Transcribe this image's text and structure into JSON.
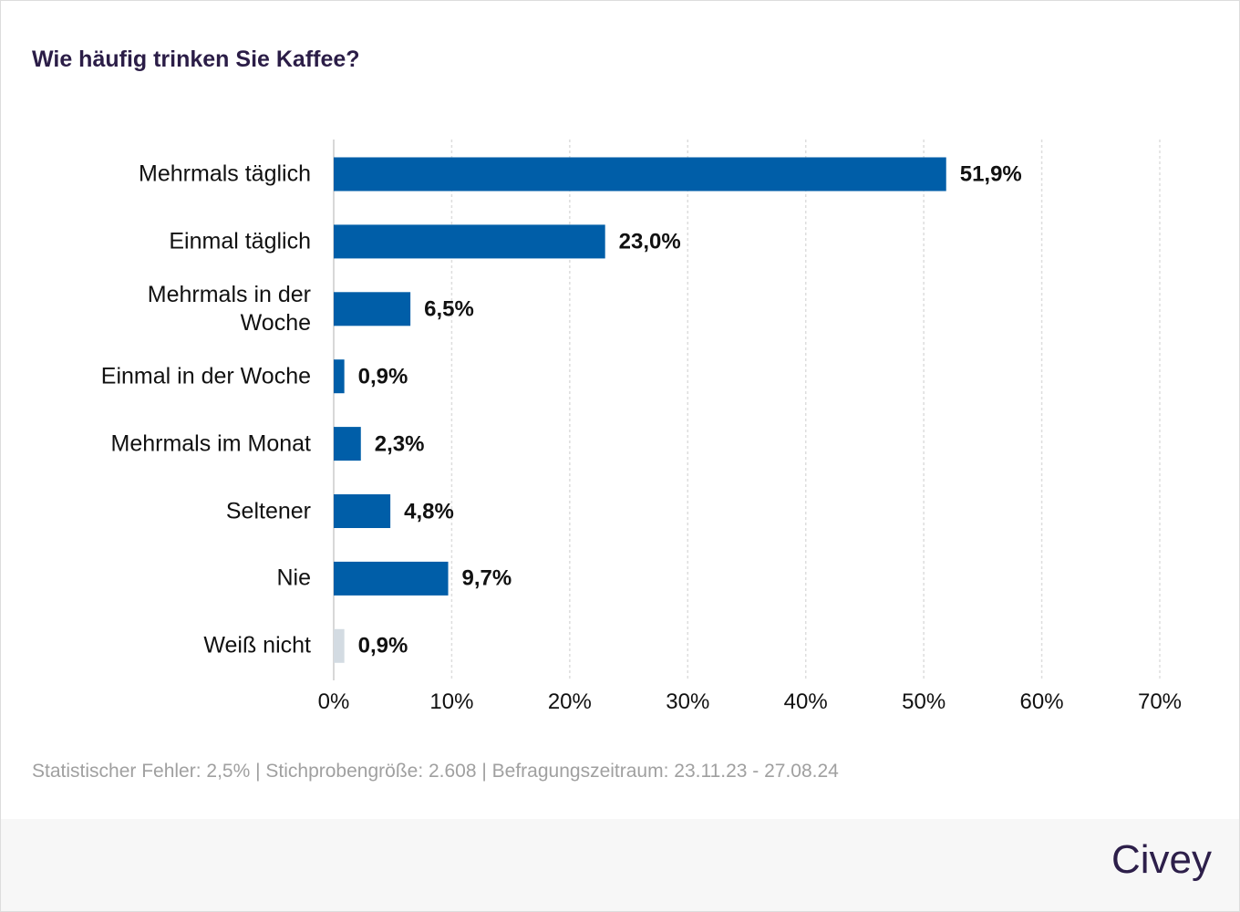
{
  "chart_data": {
    "type": "barh",
    "title": "Wie häufig trinken Sie Kaffee?",
    "categories": [
      "Mehrmals täglich",
      "Einmal täglich",
      "Mehrmals in der Woche",
      "Einmal in der Woche",
      "Mehrmals im Monat",
      "Seltener",
      "Nie",
      "Weiß nicht"
    ],
    "values": [
      51.9,
      23.0,
      6.5,
      0.9,
      2.3,
      4.8,
      9.7,
      0.9
    ],
    "value_labels": [
      "51,9%",
      "23,0%",
      "6,5%",
      "0,9%",
      "2,3%",
      "4,8%",
      "9,7%",
      "0,9%"
    ],
    "colors": [
      "#005ea8",
      "#005ea8",
      "#005ea8",
      "#005ea8",
      "#005ea8",
      "#005ea8",
      "#005ea8",
      "#d3dbe2"
    ],
    "xlim": [
      0,
      70
    ],
    "xticks": [
      {
        "value": 0,
        "label": "0%"
      },
      {
        "value": 10,
        "label": "10%"
      },
      {
        "value": 20,
        "label": "20%"
      },
      {
        "value": 30,
        "label": "30%"
      },
      {
        "value": 40,
        "label": "40%"
      },
      {
        "value": 50,
        "label": "50%"
      },
      {
        "value": 60,
        "label": "60%"
      },
      {
        "value": 70,
        "label": "70%"
      }
    ],
    "grid": true,
    "note": "Statistischer Fehler: 2,5% | Stichprobengröße: 2.608 | Befragungszeitraum: 23.11.23 - 27.08.24",
    "brand": "Civey"
  }
}
